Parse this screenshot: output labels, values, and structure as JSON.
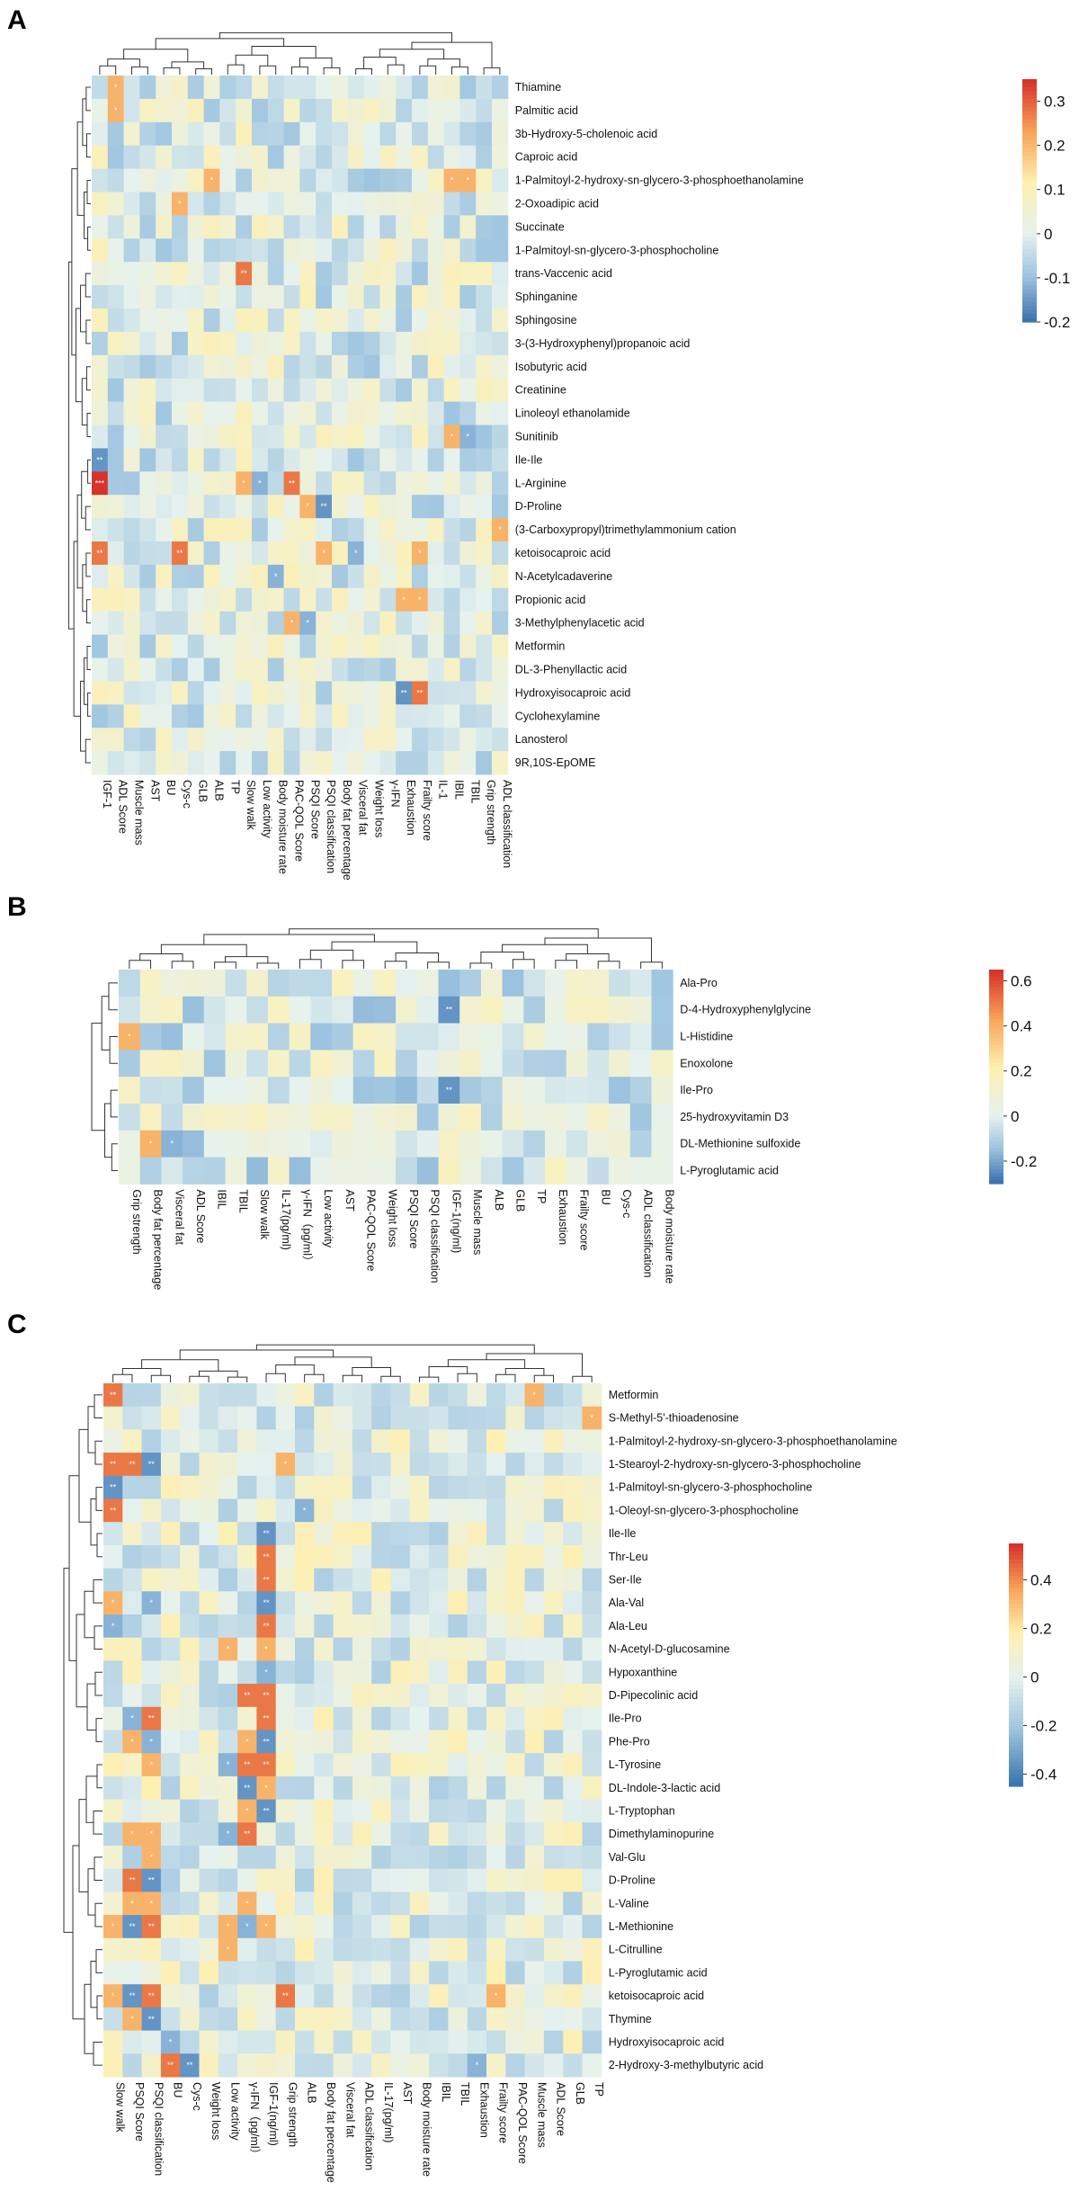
{
  "colors": {
    "negative": "#3d74b0",
    "low": "#9cc3df",
    "neutral": "#e6f2ee",
    "mid": "#fff0b0",
    "high": "#f7a65a",
    "positive": "#d7332a",
    "nan": "#eeeeee"
  },
  "chart_data": [
    {
      "panel_label": "A",
      "type": "heatmap",
      "columns": [
        "IGF-1",
        "ADL Score",
        "Muscle mass",
        "AST",
        "BU",
        "Cys-c",
        "GLB",
        "ALB",
        "TP",
        "Slow walk",
        "Low activity",
        "Body moisture rate",
        "PAC-QOL Score",
        "PSQI Score",
        "PSQI classification",
        "Body fat percentage",
        "Visceral fat",
        "Weight loss",
        "γ-IFN",
        "Exhaustion",
        "Frailty score",
        "IL-1",
        "IBIL",
        "TBIL",
        "Grip strength",
        "ADL classification"
      ],
      "rows": [
        "Thiamine",
        "Palmitic acid",
        "3b-Hydroxy-5-cholenoic acid",
        "Caproic acid",
        "1-Palmitoyl-2-hydroxy-sn-glycero-3-phosphoethanolamine",
        "2-Oxoadipic acid",
        "Succinate",
        "1-Palmitoyl-sn-glycero-3-phosphocholine",
        "trans-Vaccenic acid",
        "Sphinganine",
        "Sphingosine",
        "3-(3-Hydroxyphenyl)propanoic acid",
        "Isobutyric acid",
        "Creatinine",
        "Linoleoyl ethanolamide",
        "Sunitinib",
        "Ile-Ile",
        "L-Arginine",
        "D-Proline",
        "(3-Carboxypropyl)trimethylammonium cation",
        "ketoisocaproic acid",
        "N-Acetylcadaverine",
        "Propionic acid",
        "3-Methylphenylacetic acid",
        "Metformin",
        "DL-3-Phenyllactic acid",
        "Hydroxyisocaproic acid",
        "Cyclohexylamine",
        "Lanosterol",
        "9R,10S-EpOME"
      ],
      "vmin": -0.2,
      "vmax": 0.35,
      "legend_ticks": [
        "0.3",
        "0.2",
        "0.1",
        "0",
        "-0.1",
        "-0.2"
      ],
      "legend_values": [
        0.3,
        0.2,
        0.1,
        0,
        -0.1,
        -0.2
      ],
      "significant": [
        {
          "row": "Thiamine",
          "col": "ADL Score",
          "mark": "*"
        },
        {
          "row": "Palmitic acid",
          "col": "ADL Score",
          "mark": "*"
        },
        {
          "row": "1-Palmitoyl-2-hydroxy-sn-glycero-3-phosphoethanolamine",
          "col": "ALB",
          "mark": "*"
        },
        {
          "row": "1-Palmitoyl-2-hydroxy-sn-glycero-3-phosphoethanolamine",
          "col": "IBIL",
          "mark": "*"
        },
        {
          "row": "1-Palmitoyl-2-hydroxy-sn-glycero-3-phosphoethanolamine",
          "col": "TBIL",
          "mark": "*"
        },
        {
          "row": "2-Oxoadipic acid",
          "col": "Cys-c",
          "mark": "*"
        },
        {
          "row": "trans-Vaccenic acid",
          "col": "Slow walk",
          "mark": "**"
        },
        {
          "row": "Sunitinib",
          "col": "IBIL",
          "mark": "*"
        },
        {
          "row": "Sunitinib",
          "col": "TBIL",
          "mark": "*"
        },
        {
          "row": "Ile-Ile",
          "col": "IGF-1",
          "mark": "**"
        },
        {
          "row": "L-Arginine",
          "col": "IGF-1",
          "mark": "***"
        },
        {
          "row": "L-Arginine",
          "col": "Slow walk",
          "mark": "*"
        },
        {
          "row": "L-Arginine",
          "col": "Low activity",
          "mark": "*"
        },
        {
          "row": "L-Arginine",
          "col": "PAC-QOL Score",
          "mark": "**"
        },
        {
          "row": "D-Proline",
          "col": "PSQI Score",
          "mark": "*"
        },
        {
          "row": "D-Proline",
          "col": "PSQI classification",
          "mark": "**"
        },
        {
          "row": "(3-Carboxypropyl)trimethylammonium cation",
          "col": "ADL classification",
          "mark": "*"
        },
        {
          "row": "ketoisocaproic acid",
          "col": "IGF-1",
          "mark": "**"
        },
        {
          "row": "ketoisocaproic acid",
          "col": "Cys-c",
          "mark": "**"
        },
        {
          "row": "ketoisocaproic acid",
          "col": "PSQI classification",
          "mark": "*"
        },
        {
          "row": "ketoisocaproic acid",
          "col": "Visceral fat",
          "mark": "*"
        },
        {
          "row": "ketoisocaproic acid",
          "col": "Frailty score",
          "mark": "*"
        },
        {
          "row": "N-Acetylcadaverine",
          "col": "Body moisture rate",
          "mark": "*"
        },
        {
          "row": "Propionic acid",
          "col": "Exhaustion",
          "mark": "*"
        },
        {
          "row": "Propionic acid",
          "col": "Frailty score",
          "mark": "*"
        },
        {
          "row": "3-Methylphenylacetic acid",
          "col": "PAC-QOL Score",
          "mark": "*"
        },
        {
          "row": "3-Methylphenylacetic acid",
          "col": "PSQI Score",
          "mark": "*"
        },
        {
          "row": "Hydroxyisocaproic acid",
          "col": "Exhaustion",
          "mark": "**"
        },
        {
          "row": "Hydroxyisocaproic acid",
          "col": "Frailty score",
          "mark": "**"
        }
      ],
      "seed": 11
    },
    {
      "panel_label": "B",
      "type": "heatmap",
      "columns": [
        "Grip strength",
        "Body fat percentage",
        "Visceral fat",
        "ADL Score",
        "IBIL",
        "TBIL",
        "Slow walk",
        "IL-17(pg/ml)",
        "γ-IFN（pg/ml）",
        "Low activity",
        "AST",
        "PAC-QOL Score",
        "Weight loss",
        "PSQI Score",
        "PSQI classification",
        "IGF-1(ng/ml)",
        "Muscle mass",
        "ALB",
        "GLB",
        "TP",
        "Exhaustion",
        "Frailty score",
        "BU",
        "Cys-c",
        "ADL classification",
        "Body moisture rate"
      ],
      "rows": [
        "Ala-Pro",
        "D-4-Hydroxyphenylglycine",
        "L-Histidine",
        "Enoxolone",
        "Ile-Pro",
        "25-hydroxyvitamin D3",
        "DL-Methionine sulfoxide",
        "L-Pyroglutamic acid"
      ],
      "vmin": -0.3,
      "vmax": 0.65,
      "legend_ticks": [
        "0.6",
        "0.4",
        "0.2",
        "0",
        "-0.2"
      ],
      "legend_values": [
        0.6,
        0.4,
        0.2,
        0,
        -0.2
      ],
      "significant": [
        {
          "row": "D-4-Hydroxyphenylglycine",
          "col": "IGF-1(ng/ml)",
          "mark": "**"
        },
        {
          "row": "L-Histidine",
          "col": "Grip strength",
          "mark": "*"
        },
        {
          "row": "Ile-Pro",
          "col": "IGF-1(ng/ml)",
          "mark": "**"
        },
        {
          "row": "DL-Methionine sulfoxide",
          "col": "Body fat percentage",
          "mark": "*"
        },
        {
          "row": "DL-Methionine sulfoxide",
          "col": "Visceral fat",
          "mark": "*"
        }
      ],
      "seed": 29
    },
    {
      "panel_label": "C",
      "type": "heatmap",
      "columns": [
        "Slow walk",
        "PSQI Score",
        "PSQI classification",
        "BU",
        "Cys-c",
        "Weight loss",
        "Low activity",
        "γ-IFN（pg/ml）",
        "IGF-1(ng/ml)",
        "Grip strength",
        "ALB",
        "Body fat percentage",
        "Visceral fat",
        "ADL classification",
        "IL-17(pg/ml)",
        "AST",
        "Body moisture rate",
        "IBIL",
        "TBIL",
        "Exhaustion",
        "Frailty score",
        "PAC-QOL Score",
        "Muscle mass",
        "ADL Score",
        "GLB",
        "TP"
      ],
      "rows": [
        "Metformin",
        "S-Methyl-5'-thioadenosine",
        "1-Palmitoyl-2-hydroxy-sn-glycero-3-phosphoethanolamine",
        "1-Stearoyl-2-hydroxy-sn-glycero-3-phosphocholine",
        "1-Palmitoyl-sn-glycero-3-phosphocholine",
        "1-Oleoyl-sn-glycero-3-phosphocholine",
        "Ile-Ile",
        "Thr-Leu",
        "Ser-Ile",
        "Ala-Val",
        "Ala-Leu",
        "N-Acetyl-D-glucosamine",
        "Hypoxanthine",
        "D-Pipecolinic acid",
        "Ile-Pro",
        "Phe-Pro",
        "L-Tyrosine",
        "DL-Indole-3-lactic acid",
        "L-Tryptophan",
        "Dimethylaminopurine",
        "Val-Glu",
        "D-Proline",
        "L-Valine",
        "L-Methionine",
        "L-Citrulline",
        "L-Pyroglutamic acid",
        "ketoisocaproic acid",
        "Thymine",
        "Hydroxyisocaproic acid",
        "2-Hydroxy-3-methylbutyric acid"
      ],
      "vmin": -0.45,
      "vmax": 0.55,
      "legend_ticks": [
        "0.4",
        "0.2",
        "0",
        "-0.2",
        "-0.4"
      ],
      "legend_values": [
        0.4,
        0.2,
        0,
        -0.2,
        -0.4
      ],
      "significant": [
        {
          "row": "Metformin",
          "col": "Slow walk",
          "mark": "**"
        },
        {
          "row": "Metformin",
          "col": "Muscle mass",
          "mark": "*"
        },
        {
          "row": "S-Methyl-5'-thioadenosine",
          "col": "TP",
          "mark": "*"
        },
        {
          "row": "1-Stearoyl-2-hydroxy-sn-glycero-3-phosphocholine",
          "col": "Slow walk",
          "mark": "**"
        },
        {
          "row": "1-Stearoyl-2-hydroxy-sn-glycero-3-phosphocholine",
          "col": "PSQI Score",
          "mark": "**"
        },
        {
          "row": "1-Stearoyl-2-hydroxy-sn-glycero-3-phosphocholine",
          "col": "PSQI classification",
          "mark": "**"
        },
        {
          "row": "1-Stearoyl-2-hydroxy-sn-glycero-3-phosphocholine",
          "col": "Grip strength",
          "mark": "*"
        },
        {
          "row": "1-Palmitoyl-sn-glycero-3-phosphocholine",
          "col": "Slow walk",
          "mark": "**"
        },
        {
          "row": "1-Oleoyl-sn-glycero-3-phosphocholine",
          "col": "Slow walk",
          "mark": "**"
        },
        {
          "row": "1-Oleoyl-sn-glycero-3-phosphocholine",
          "col": "ALB",
          "mark": "*"
        },
        {
          "row": "Ile-Ile",
          "col": "IGF-1(ng/ml)",
          "mark": "**"
        },
        {
          "row": "Thr-Leu",
          "col": "IGF-1(ng/ml)",
          "mark": "**"
        },
        {
          "row": "Ser-Ile",
          "col": "IGF-1(ng/ml)",
          "mark": "**"
        },
        {
          "row": "Ala-Val",
          "col": "Slow walk",
          "mark": "*"
        },
        {
          "row": "Ala-Val",
          "col": "PSQI classification",
          "mark": "*"
        },
        {
          "row": "Ala-Val",
          "col": "IGF-1(ng/ml)",
          "mark": "**"
        },
        {
          "row": "Ala-Leu",
          "col": "Slow walk",
          "mark": "*"
        },
        {
          "row": "Ala-Leu",
          "col": "IGF-1(ng/ml)",
          "mark": "**"
        },
        {
          "row": "N-Acetyl-D-glucosamine",
          "col": "Low activity",
          "mark": "*"
        },
        {
          "row": "N-Acetyl-D-glucosamine",
          "col": "IGF-1(ng/ml)",
          "mark": "*"
        },
        {
          "row": "Hypoxanthine",
          "col": "IGF-1(ng/ml)",
          "mark": "*"
        },
        {
          "row": "D-Pipecolinic acid",
          "col": "γ-IFN（pg/ml）",
          "mark": "**"
        },
        {
          "row": "D-Pipecolinic acid",
          "col": "IGF-1(ng/ml)",
          "mark": "**"
        },
        {
          "row": "Ile-Pro",
          "col": "PSQI Score",
          "mark": "*"
        },
        {
          "row": "Ile-Pro",
          "col": "PSQI classification",
          "mark": "**"
        },
        {
          "row": "Ile-Pro",
          "col": "IGF-1(ng/ml)",
          "mark": "**"
        },
        {
          "row": "Phe-Pro",
          "col": "PSQI Score",
          "mark": "*"
        },
        {
          "row": "Phe-Pro",
          "col": "PSQI classification",
          "mark": "*"
        },
        {
          "row": "Phe-Pro",
          "col": "γ-IFN（pg/ml）",
          "mark": "*"
        },
        {
          "row": "Phe-Pro",
          "col": "IGF-1(ng/ml)",
          "mark": "**"
        },
        {
          "row": "L-Tyrosine",
          "col": "PSQI classification",
          "mark": "*"
        },
        {
          "row": "L-Tyrosine",
          "col": "Low activity",
          "mark": "*"
        },
        {
          "row": "L-Tyrosine",
          "col": "γ-IFN（pg/ml）",
          "mark": "**"
        },
        {
          "row": "L-Tyrosine",
          "col": "IGF-1(ng/ml)",
          "mark": "**"
        },
        {
          "row": "DL-Indole-3-lactic acid",
          "col": "γ-IFN（pg/ml）",
          "mark": "**"
        },
        {
          "row": "DL-Indole-3-lactic acid",
          "col": "IGF-1(ng/ml)",
          "mark": "*"
        },
        {
          "row": "L-Tryptophan",
          "col": "γ-IFN（pg/ml）",
          "mark": "*"
        },
        {
          "row": "L-Tryptophan",
          "col": "IGF-1(ng/ml)",
          "mark": "**"
        },
        {
          "row": "Dimethylaminopurine",
          "col": "PSQI Score",
          "mark": "*"
        },
        {
          "row": "Dimethylaminopurine",
          "col": "PSQI classification",
          "mark": "*"
        },
        {
          "row": "Dimethylaminopurine",
          "col": "Low activity",
          "mark": "*"
        },
        {
          "row": "Dimethylaminopurine",
          "col": "γ-IFN（pg/ml）",
          "mark": "**"
        },
        {
          "row": "Val-Glu",
          "col": "PSQI classification",
          "mark": "*"
        },
        {
          "row": "D-Proline",
          "col": "PSQI Score",
          "mark": "**"
        },
        {
          "row": "D-Proline",
          "col": "PSQI classification",
          "mark": "**"
        },
        {
          "row": "L-Valine",
          "col": "PSQI Score",
          "mark": "*"
        },
        {
          "row": "L-Valine",
          "col": "PSQI classification",
          "mark": "*"
        },
        {
          "row": "L-Valine",
          "col": "γ-IFN（pg/ml）",
          "mark": "*"
        },
        {
          "row": "L-Methionine",
          "col": "Slow walk",
          "mark": "*"
        },
        {
          "row": "L-Methionine",
          "col": "PSQI Score",
          "mark": "**"
        },
        {
          "row": "L-Methionine",
          "col": "PSQI classification",
          "mark": "**"
        },
        {
          "row": "L-Methionine",
          "col": "Low activity",
          "mark": "*"
        },
        {
          "row": "L-Methionine",
          "col": "γ-IFN（pg/ml）",
          "mark": "*"
        },
        {
          "row": "L-Methionine",
          "col": "IGF-1(ng/ml)",
          "mark": "*"
        },
        {
          "row": "L-Citrulline",
          "col": "Low activity",
          "mark": "*"
        },
        {
          "row": "ketoisocaproic acid",
          "col": "Slow walk",
          "mark": "*"
        },
        {
          "row": "ketoisocaproic acid",
          "col": "PSQI Score",
          "mark": "**"
        },
        {
          "row": "ketoisocaproic acid",
          "col": "PSQI classification",
          "mark": "**"
        },
        {
          "row": "ketoisocaproic acid",
          "col": "Grip strength",
          "mark": "**"
        },
        {
          "row": "ketoisocaproic acid",
          "col": "Frailty score",
          "mark": "*"
        },
        {
          "row": "Thymine",
          "col": "PSQI Score",
          "mark": "*"
        },
        {
          "row": "Thymine",
          "col": "PSQI classification",
          "mark": "**"
        },
        {
          "row": "Hydroxyisocaproic acid",
          "col": "BU",
          "mark": "*"
        },
        {
          "row": "2-Hydroxy-3-methylbutyric acid",
          "col": "BU",
          "mark": "**"
        },
        {
          "row": "2-Hydroxy-3-methylbutyric acid",
          "col": "Cys-c",
          "mark": "**"
        },
        {
          "row": "2-Hydroxy-3-methylbutyric acid",
          "col": "Exhaustion",
          "mark": "*"
        }
      ],
      "seed": 53
    }
  ]
}
